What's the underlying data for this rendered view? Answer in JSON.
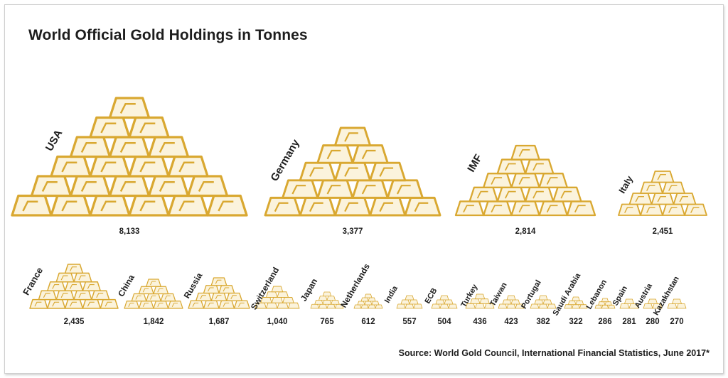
{
  "title": "World Official Gold Holdings in Tonnes",
  "source": "Source: World Gold Council, International Financial Statistics, June 2017*",
  "colors": {
    "gold": "#d9a831",
    "gold_inner": "#fbf3dc",
    "text": "#1d1d1d",
    "frame": "#cfcfcf"
  },
  "chart_data": {
    "type": "bar",
    "title": "World Official Gold Holdings in Tonnes",
    "unit": "Tonnes",
    "categories": [
      "USA",
      "Germany",
      "IMF",
      "Italy",
      "France",
      "China",
      "Russia",
      "Switzerland",
      "Japan",
      "Netherlands",
      "India",
      "ECB",
      "Turkey",
      "Taiwan",
      "Portugal",
      "Saudi Arabia",
      "Lebanon",
      "Spain",
      "Austria",
      "Kazakhstan"
    ],
    "values": [
      8133,
      3377,
      2814,
      2451,
      2435,
      1842,
      1687,
      1040,
      765,
      612,
      557,
      504,
      436,
      423,
      382,
      322,
      286,
      281,
      280,
      270
    ],
    "value_labels": [
      "8,133",
      "3,377",
      "2,814",
      "2,451",
      "2,435",
      "1,842",
      "1,687",
      "1,040",
      "765",
      "612",
      "557",
      "504",
      "436",
      "423",
      "382",
      "322",
      "286",
      "281",
      "280",
      "270"
    ],
    "xlabel": "",
    "ylabel": "",
    "grid": false,
    "legend": "none"
  }
}
